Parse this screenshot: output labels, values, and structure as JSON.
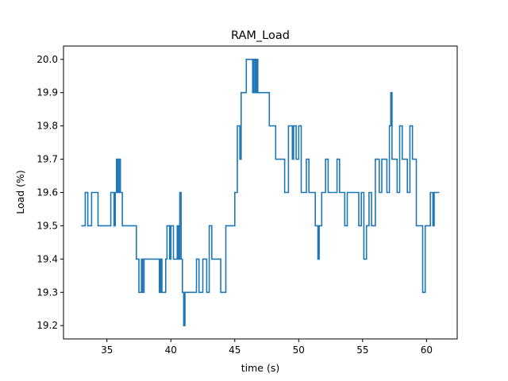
{
  "chart_data": {
    "type": "line",
    "title": "RAM_Load",
    "xlabel": "time (s)",
    "ylabel": "Load (%)",
    "xlim": [
      31.6,
      62.4
    ],
    "ylim": [
      19.16,
      20.04
    ],
    "xticks": [
      35,
      40,
      45,
      50,
      55,
      60
    ],
    "yticks": [
      19.2,
      19.3,
      19.4,
      19.5,
      19.6,
      19.7,
      19.8,
      19.9,
      20.0
    ],
    "xtick_labels": [
      "35",
      "40",
      "45",
      "50",
      "55",
      "60"
    ],
    "ytick_labels": [
      "19.2",
      "19.3",
      "19.4",
      "19.5",
      "19.6",
      "19.7",
      "19.8",
      "19.9",
      "20.0"
    ],
    "grid": false,
    "line_style": "steps-post",
    "series": [
      {
        "color": "#1f77b4",
        "x": [
          33.0,
          33.1,
          33.3,
          33.5,
          33.8,
          34.3,
          34.6,
          34.75,
          34.9,
          35.3,
          35.55,
          35.65,
          35.75,
          35.85,
          35.95,
          36.05,
          36.2,
          36.4,
          37.3,
          37.5,
          37.7,
          37.8,
          37.9,
          38.0,
          38.2,
          38.6,
          39.0,
          39.1,
          39.2,
          39.3,
          39.6,
          39.7,
          39.9,
          40.0,
          40.2,
          40.3,
          40.5,
          40.6,
          40.7,
          40.8,
          40.9,
          41.0,
          41.1,
          41.3,
          41.4,
          42.0,
          42.2,
          42.3,
          42.5,
          42.8,
          43.0,
          43.2,
          43.5,
          43.7,
          43.9,
          44.3,
          44.4,
          44.6,
          45.0,
          45.2,
          45.4,
          45.5,
          45.7,
          45.9,
          46.1,
          46.4,
          46.5,
          46.6,
          46.7,
          46.8,
          47.0,
          47.3,
          47.7,
          47.8,
          48.0,
          48.2,
          48.6,
          48.9,
          49.2,
          49.5,
          49.6,
          49.8,
          50.0,
          50.2,
          50.4,
          50.6,
          50.8,
          51.3,
          51.5,
          51.6,
          51.8,
          52.1,
          52.3,
          52.6,
          52.8,
          53.0,
          53.2,
          53.6,
          53.8,
          54.5,
          54.7,
          54.9,
          55.1,
          55.3,
          55.5,
          55.7,
          56.0,
          56.3,
          56.5,
          56.6,
          56.9,
          57.1,
          57.2,
          57.3,
          57.5,
          57.7,
          57.9,
          58.1,
          58.3,
          58.5,
          58.7,
          58.9,
          59.2,
          59.5,
          59.7,
          59.9,
          60.3,
          60.5,
          60.6,
          60.7,
          61.0
        ],
        "y": [
          19.5,
          19.5,
          19.6,
          19.5,
          19.6,
          19.5,
          19.5,
          19.5,
          19.5,
          19.6,
          19.5,
          19.6,
          19.7,
          19.6,
          19.7,
          19.6,
          19.5,
          19.5,
          19.4,
          19.3,
          19.4,
          19.3,
          19.4,
          19.4,
          19.4,
          19.4,
          19.4,
          19.3,
          19.4,
          19.3,
          19.4,
          19.5,
          19.4,
          19.5,
          19.4,
          19.4,
          19.5,
          19.4,
          19.6,
          19.4,
          19.3,
          19.2,
          19.3,
          19.3,
          19.3,
          19.4,
          19.3,
          19.3,
          19.4,
          19.3,
          19.5,
          19.4,
          19.4,
          19.4,
          19.3,
          19.5,
          19.5,
          19.5,
          19.6,
          19.8,
          19.7,
          19.9,
          19.9,
          20.0,
          20.0,
          19.9,
          20.0,
          19.9,
          20.0,
          19.9,
          19.9,
          19.9,
          19.8,
          19.8,
          19.8,
          19.7,
          19.7,
          19.6,
          19.8,
          19.7,
          19.8,
          19.7,
          19.8,
          19.6,
          19.6,
          19.7,
          19.6,
          19.5,
          19.4,
          19.5,
          19.6,
          19.7,
          19.6,
          19.6,
          19.6,
          19.7,
          19.6,
          19.5,
          19.6,
          19.6,
          19.5,
          19.6,
          19.4,
          19.5,
          19.6,
          19.5,
          19.7,
          19.6,
          19.7,
          19.7,
          19.6,
          19.8,
          19.9,
          19.7,
          19.7,
          19.6,
          19.8,
          19.7,
          19.7,
          19.6,
          19.8,
          19.7,
          19.5,
          19.5,
          19.3,
          19.5,
          19.6,
          19.5,
          19.6,
          19.6,
          19.6
        ]
      }
    ]
  }
}
